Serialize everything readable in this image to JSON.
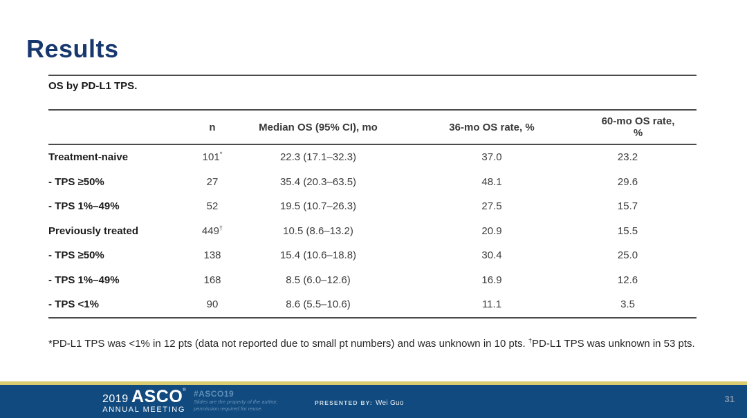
{
  "slide": {
    "title": "Results",
    "table": {
      "caption": "OS by PD-L1 TPS.",
      "columns": [
        "",
        "n",
        "Median OS (95% CI), mo",
        "36-mo OS rate, %",
        "60-mo OS rate, %"
      ],
      "rows": [
        {
          "label": "Treatment-naive",
          "n": "101",
          "n_mark": "*",
          "median": "22.3 (17.1–32.3)",
          "rate36": "37.0",
          "rate60": "23.2"
        },
        {
          "label": "- TPS ≥50%",
          "n": "27",
          "n_mark": "",
          "median": "35.4 (20.3–63.5)",
          "rate36": "48.1",
          "rate60": "29.6"
        },
        {
          "label": "- TPS 1%–49%",
          "n": "52",
          "n_mark": "",
          "median": "19.5 (10.7–26.3)",
          "rate36": "27.5",
          "rate60": "15.7"
        },
        {
          "label": "Previously treated",
          "n": "449",
          "n_mark": "†",
          "median": "10.5 (8.6–13.2)",
          "rate36": "20.9",
          "rate60": "15.5"
        },
        {
          "label": "- TPS ≥50%",
          "n": "138",
          "n_mark": "",
          "median": "15.4 (10.6–18.8)",
          "rate36": "30.4",
          "rate60": "25.0"
        },
        {
          "label": "- TPS 1%–49%",
          "n": "168",
          "n_mark": "",
          "median": "8.5 (6.0–12.6)",
          "rate36": "16.9",
          "rate60": "12.6"
        },
        {
          "label": "- TPS <1%",
          "n": "90",
          "n_mark": "",
          "median": "8.6 (5.5–10.6)",
          "rate36": "11.1",
          "rate60": "3.5"
        }
      ]
    },
    "footnote": {
      "part1": "*PD-L1 TPS was <1% in 12 pts (data not reported due to small pt numbers) and was unknown in 10 pts. ",
      "dagger": "†",
      "part2": "PD-L1 TPS was unknown in 53 pts."
    },
    "footer": {
      "year": "2019",
      "org": "ASCO",
      "org_mark": "®",
      "meeting": "ANNUAL MEETING",
      "hashtag": "#ASCO19",
      "disclaimer_line1": "Slides are the property of the author,",
      "disclaimer_line2": "permission required for reuse.",
      "presented_by_label": "PRESENTED BY:",
      "presenter": "Wei Guo",
      "page_number": "31"
    },
    "colors": {
      "title_text": "#17386e",
      "footer_bar": "#114a7e",
      "footer_accent": "#dbcc71",
      "hashtag_text": "#5f8fba"
    }
  }
}
